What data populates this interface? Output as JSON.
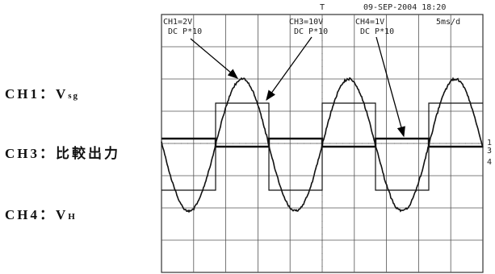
{
  "scope": {
    "timestamp": "09-SEP-2004 18:20",
    "timebase": "5ms/d",
    "trigger": "T",
    "channels": [
      {
        "setting": "CH1=2V",
        "coupling": "DC P*10"
      },
      {
        "setting": "CH3=10V",
        "coupling": "DC P*10"
      },
      {
        "setting": "CH4=1V",
        "coupling": "DC P*10"
      }
    ],
    "markers": [
      "1",
      "3",
      "4"
    ]
  },
  "labels": [
    {
      "channel": "CH1：",
      "signal": "V",
      "subscript": "sg"
    },
    {
      "channel": "CH3：",
      "signal": "比較出力"
    },
    {
      "channel": "CH4：",
      "signal": "V",
      "subscript": "H"
    }
  ]
}
